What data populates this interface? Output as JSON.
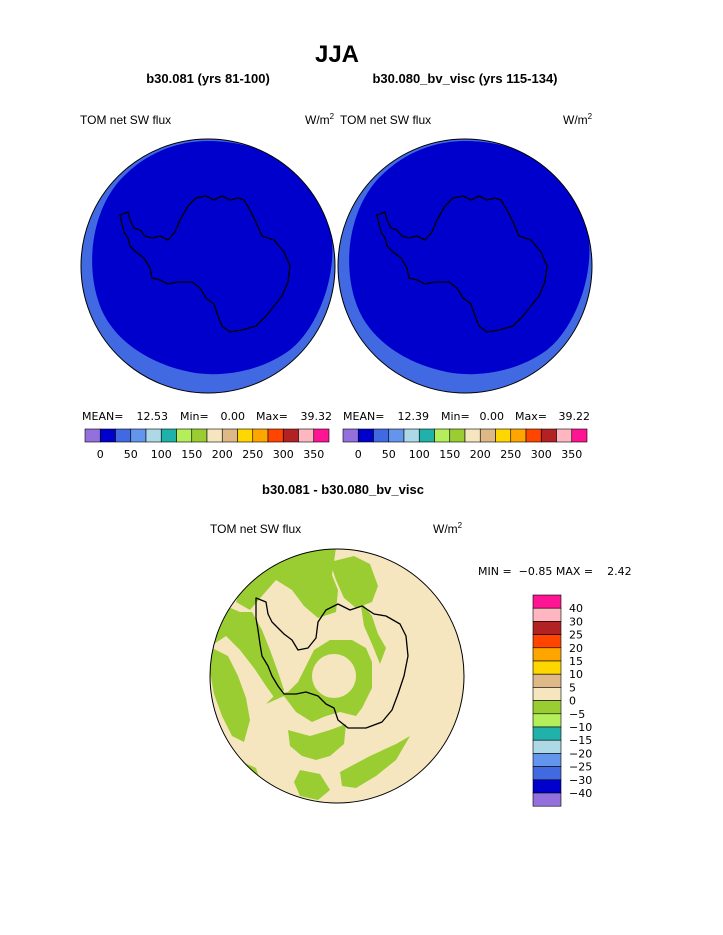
{
  "title": "JJA",
  "panels": [
    {
      "subtitle": "b30.081 (yrs 81-100)",
      "left_label": "TOM net SW flux",
      "units_base": "W/m",
      "units_exp": "2",
      "stats": {
        "mean_label": "MEAN=",
        "mean": "12.53",
        "min_label": "Min=",
        "min": "0.00",
        "max_label": "Max=",
        "max": "39.32"
      }
    },
    {
      "subtitle": "b30.080_bv_visc (yrs 115-134)",
      "left_label": "TOM net SW flux",
      "units_base": "W/m",
      "units_exp": "2",
      "stats": {
        "mean_label": "MEAN=",
        "mean": "12.39",
        "min_label": "Min=",
        "min": "0.00",
        "max_label": "Max=",
        "max": "39.22"
      }
    }
  ],
  "diff": {
    "subtitle": "b30.081 - b30.080_bv_visc",
    "left_label": "TOM net SW flux",
    "units_base": "W/m",
    "units_exp": "2",
    "min_max_text": "MIN =  −0.85 MAX =    2.42"
  },
  "chart_data": [
    {
      "type": "heatmap",
      "projection": "south polar stereographic",
      "title": "b30.081 (yrs 81-100)",
      "variable": "TOM net SW flux",
      "units": "W/m2",
      "mean": 12.53,
      "min": 0.0,
      "max": 39.32,
      "colorbar": {
        "tick_labels": [
          "0",
          "50",
          "100",
          "150",
          "200",
          "250",
          "300",
          "350"
        ],
        "colors": [
          "#9370DB",
          "#0000CD",
          "#4169E1",
          "#6495ED",
          "#ADD8E6",
          "#20B2AA",
          "#B4EE5A",
          "#9ACD32",
          "#F5E6C0",
          "#DEB887",
          "#FFD700",
          "#FFA500",
          "#FF4500",
          "#B22222",
          "#FFB6C1",
          "#FF1493"
        ]
      },
      "regions": [
        {
          "range": "0-25",
          "color": "#0000CD",
          "location": "interior, including continent"
        },
        {
          "range": "25-50",
          "color": "#4169E1",
          "location": "outer ring"
        }
      ]
    },
    {
      "type": "heatmap",
      "projection": "south polar stereographic",
      "title": "b30.080_bv_visc (yrs 115-134)",
      "variable": "TOM net SW flux",
      "units": "W/m2",
      "mean": 12.39,
      "min": 0.0,
      "max": 39.22,
      "colorbar": {
        "tick_labels": [
          "0",
          "50",
          "100",
          "150",
          "200",
          "250",
          "300",
          "350"
        ],
        "colors": [
          "#9370DB",
          "#0000CD",
          "#4169E1",
          "#6495ED",
          "#ADD8E6",
          "#20B2AA",
          "#B4EE5A",
          "#9ACD32",
          "#F5E6C0",
          "#DEB887",
          "#FFD700",
          "#FFA500",
          "#FF4500",
          "#B22222",
          "#FFB6C1",
          "#FF1493"
        ]
      },
      "regions": [
        {
          "range": "0-25",
          "color": "#0000CD",
          "location": "interior, including continent"
        },
        {
          "range": "25-50",
          "color": "#4169E1",
          "location": "outer ring"
        }
      ]
    },
    {
      "type": "heatmap",
      "projection": "south polar stereographic",
      "title": "b30.081 - b30.080_bv_visc",
      "variable": "TOM net SW flux",
      "units": "W/m2",
      "min": -0.85,
      "max": 2.42,
      "colorbar": {
        "tick_labels": [
          "40",
          "30",
          "25",
          "20",
          "15",
          "10",
          "5",
          "0",
          "−5",
          "−10",
          "−15",
          "−20",
          "−25",
          "−30",
          "−40"
        ],
        "colors": [
          "#FF1493",
          "#FFB6C1",
          "#B22222",
          "#FF4500",
          "#FFA500",
          "#FFD700",
          "#DEB887",
          "#F5E6C0",
          "#9ACD32",
          "#B4EE5A",
          "#20B2AA",
          "#ADD8E6",
          "#6495ED",
          "#4169E1",
          "#0000CD",
          "#9370DB"
        ]
      },
      "regions": [
        {
          "range": "0 to 5",
          "color": "#F5E6C0",
          "location": "most of domain"
        },
        {
          "range": "-5 to 0",
          "color": "#9ACD32",
          "location": "patches, mainly Atlantic/Weddell sector and ring near pole"
        }
      ]
    }
  ]
}
